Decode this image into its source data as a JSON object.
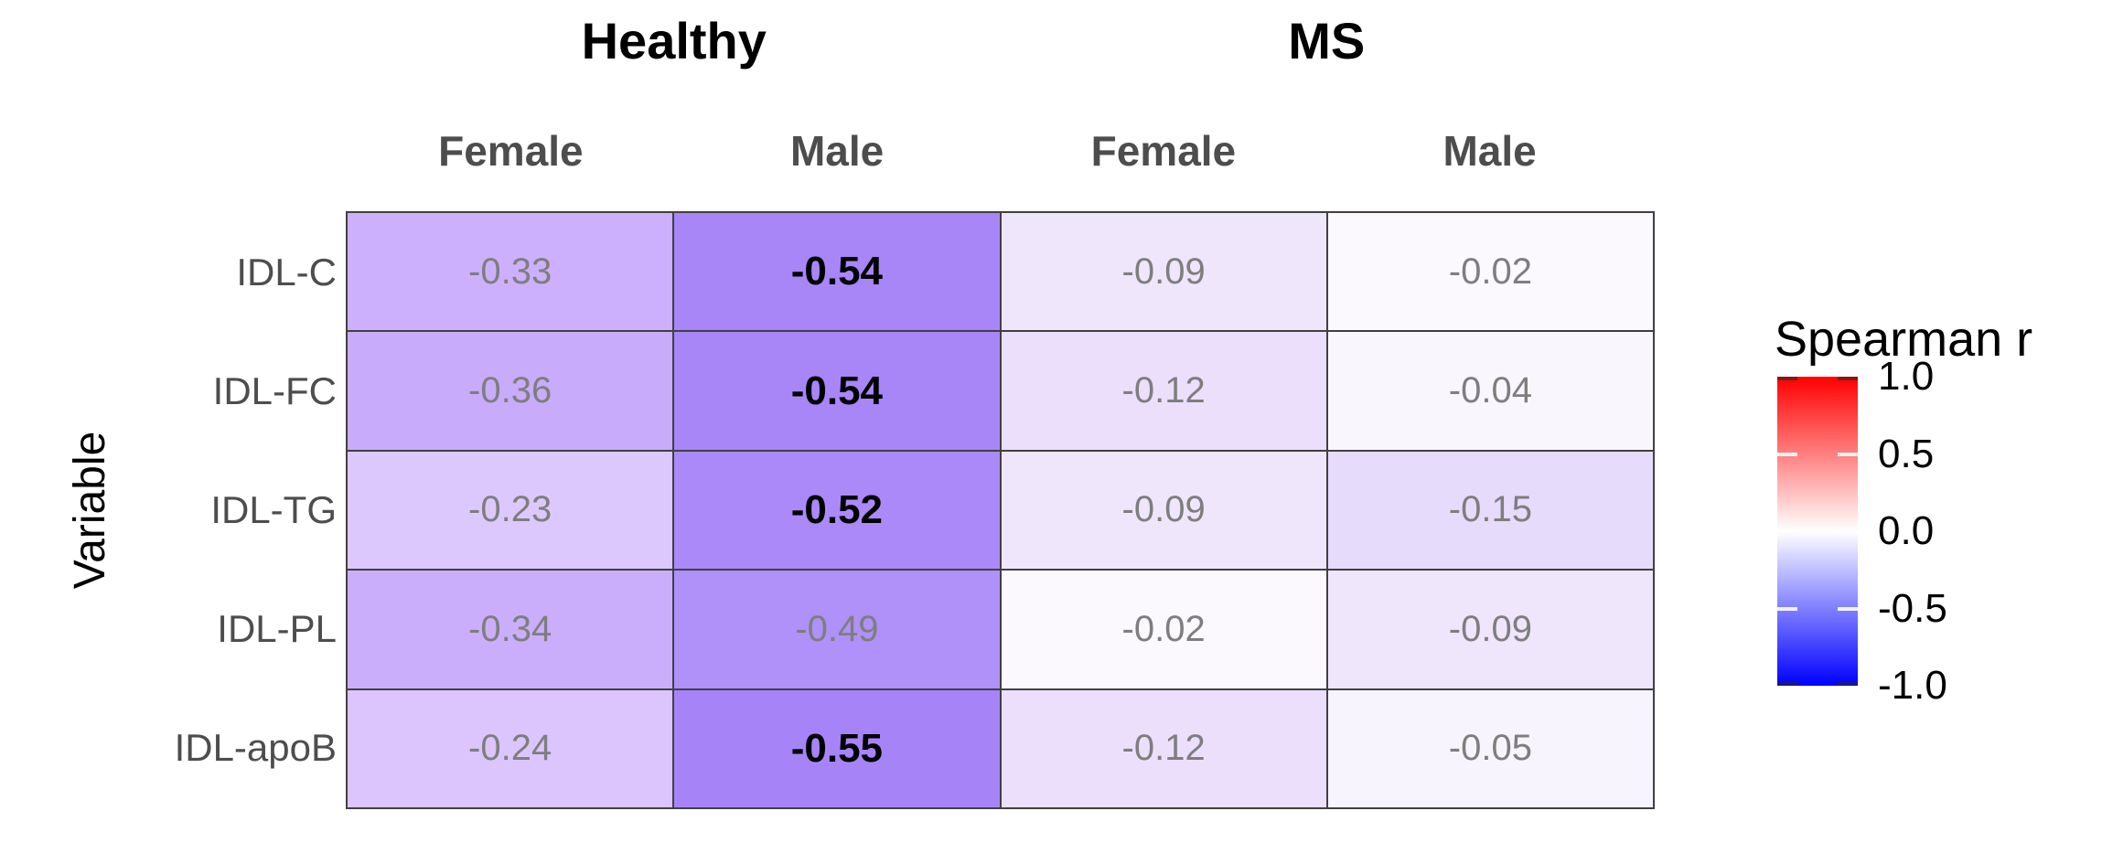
{
  "chart_data": {
    "type": "heatmap",
    "facet_headers": [
      {
        "label": "Healthy",
        "columns": [
          0,
          1
        ]
      },
      {
        "label": "MS",
        "columns": [
          2,
          3
        ]
      }
    ],
    "columns": [
      "Female",
      "Male",
      "Female",
      "Male"
    ],
    "rows": [
      "IDL-C",
      "IDL-FC",
      "IDL-TG",
      "IDL-PL",
      "IDL-apoB"
    ],
    "ylabel": "Variable",
    "values": [
      [
        -0.33,
        -0.54,
        -0.09,
        -0.02
      ],
      [
        -0.36,
        -0.54,
        -0.12,
        -0.04
      ],
      [
        -0.23,
        -0.52,
        -0.09,
        -0.15
      ],
      [
        -0.34,
        -0.49,
        -0.02,
        -0.09
      ],
      [
        -0.24,
        -0.55,
        -0.12,
        -0.05
      ]
    ],
    "bold": [
      [
        false,
        true,
        false,
        false
      ],
      [
        false,
        true,
        false,
        false
      ],
      [
        false,
        true,
        false,
        false
      ],
      [
        false,
        false,
        false,
        false
      ],
      [
        false,
        true,
        false,
        false
      ]
    ],
    "cell_colors": [
      [
        "#CDB0FD",
        "#A886F8",
        "#EFE6FC",
        "#FBF8FE"
      ],
      [
        "#C9ABFB",
        "#A886F8",
        "#EBDFFB",
        "#F9F6FE"
      ],
      [
        "#DDC8FD",
        "#AB89F8",
        "#EFE6FC",
        "#E7DBFB"
      ],
      [
        "#CBAEFB",
        "#B090F9",
        "#FBF8FE",
        "#EFE6FC"
      ],
      [
        "#DBC5FC",
        "#A684F7",
        "#EBDFFB",
        "#F8F4FD"
      ]
    ],
    "legend": {
      "title": "Spearman r",
      "tick_labels": [
        "1.0",
        "0.5",
        "0.0",
        "-0.5",
        "-1.0"
      ],
      "tick_values": [
        1.0,
        0.5,
        0.0,
        -0.5,
        -1.0
      ],
      "range": [
        -1.0,
        1.0
      ],
      "gradient_top": "#FF0000",
      "gradient_mid": "#FFFFFF",
      "gradient_bottom": "#0000FF"
    },
    "grid_line_color": "#404040",
    "colors": {
      "facet_header_text": "#000000",
      "column_header_text": "#4D4D4D",
      "row_label_text": "#4D4D4D",
      "cell_text_normal": "#7E7E7E",
      "cell_text_significant": "#000000"
    }
  }
}
